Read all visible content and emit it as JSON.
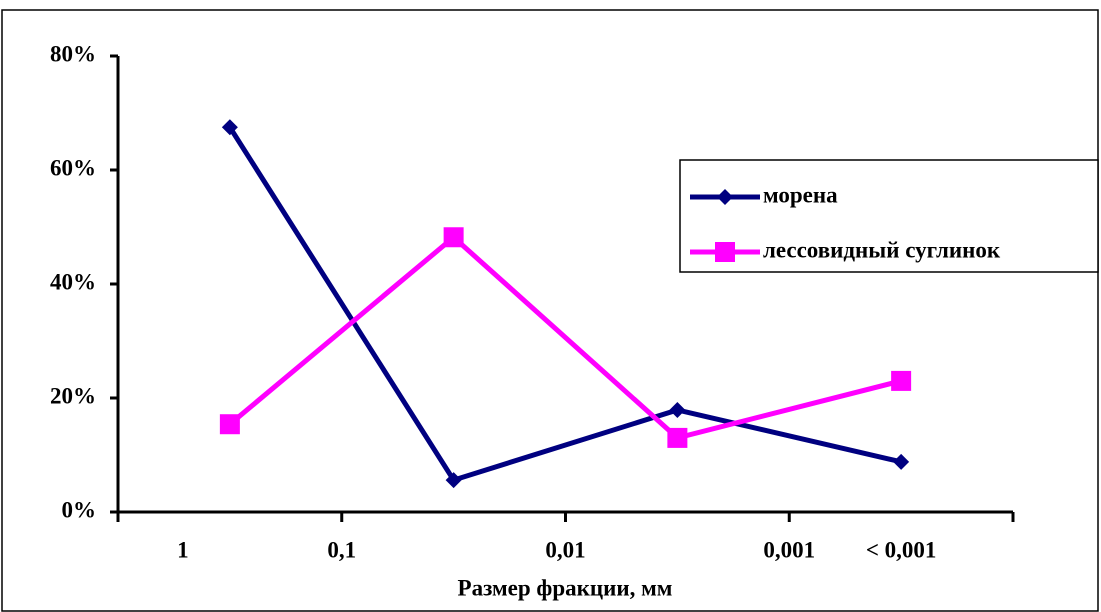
{
  "chart_data": {
    "type": "line",
    "x_label": "Размер фракции, мм",
    "categories": [
      null,
      null,
      null,
      null
    ],
    "x_tick_labels": [
      "1",
      "0,1",
      "0,01",
      "0,001",
      "< 0,001"
    ],
    "series": [
      {
        "name": "морена",
        "color": "#000080",
        "marker": "diamond",
        "values": [
          67.5,
          5.6,
          17.9,
          8.8
        ]
      },
      {
        "name": "лессовидный суглинок",
        "color": "#ff00ff",
        "marker": "square",
        "values": [
          15.4,
          48.2,
          13,
          23
        ]
      }
    ],
    "ylim": [
      0,
      80
    ],
    "yticks": [
      {
        "value": 0,
        "label": "0%"
      },
      {
        "value": 20,
        "label": "20%"
      },
      {
        "value": 40,
        "label": "40%"
      },
      {
        "value": 60,
        "label": "60%"
      },
      {
        "value": 80,
        "label": "80%"
      }
    ],
    "grid": false
  }
}
